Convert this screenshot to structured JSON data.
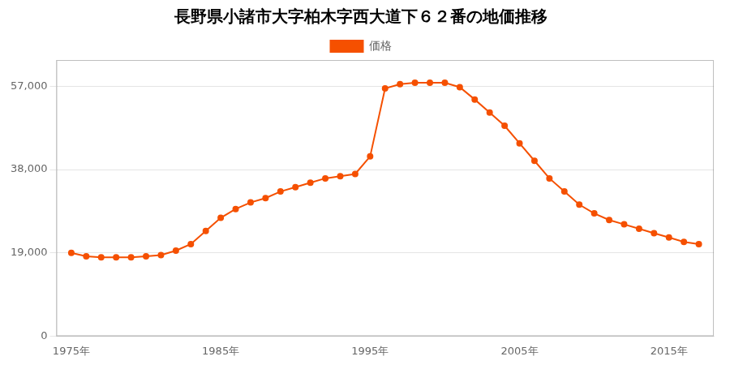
{
  "chart_data": {
    "type": "line",
    "title": "長野県小諸市大字柏木字西大道下６２番の地価推移",
    "x": [
      1975,
      1976,
      1977,
      1978,
      1979,
      1980,
      1981,
      1982,
      1983,
      1984,
      1985,
      1986,
      1987,
      1988,
      1989,
      1990,
      1991,
      1992,
      1993,
      1994,
      1995,
      1996,
      1997,
      1998,
      1999,
      2000,
      2001,
      2002,
      2003,
      2004,
      2005,
      2006,
      2007,
      2008,
      2009,
      2010,
      2011,
      2012,
      2013,
      2014,
      2015,
      2016,
      2017
    ],
    "series": [
      {
        "name": "価格",
        "color": "#f55000",
        "marker": "circle",
        "values": [
          19000,
          18200,
          18000,
          18000,
          18000,
          18200,
          18500,
          19500,
          21000,
          24000,
          27000,
          29000,
          30500,
          31500,
          33000,
          34000,
          35000,
          36000,
          36500,
          37000,
          41000,
          56500,
          57500,
          57800,
          57800,
          57800,
          56800,
          54000,
          51000,
          48000,
          44000,
          40000,
          36000,
          33000,
          30000,
          28000,
          26500,
          25500,
          24500,
          23500,
          22500,
          21500,
          21000
        ]
      }
    ],
    "xlim": [
      1974,
      2018
    ],
    "xticks": [
      {
        "value": 1975,
        "label": "1975年"
      },
      {
        "value": 1985,
        "label": "1985年"
      },
      {
        "value": 1995,
        "label": "1995年"
      },
      {
        "value": 2005,
        "label": "2005年"
      },
      {
        "value": 2015,
        "label": "2015年"
      }
    ],
    "ylim": [
      0,
      63000
    ],
    "yticks": [
      0,
      {
        "value": 19000,
        "label": "19,000"
      },
      {
        "value": 38000,
        "label": "38,000"
      },
      {
        "value": 57000,
        "label": "57,000"
      }
    ],
    "grid": "y",
    "legend": "top"
  }
}
